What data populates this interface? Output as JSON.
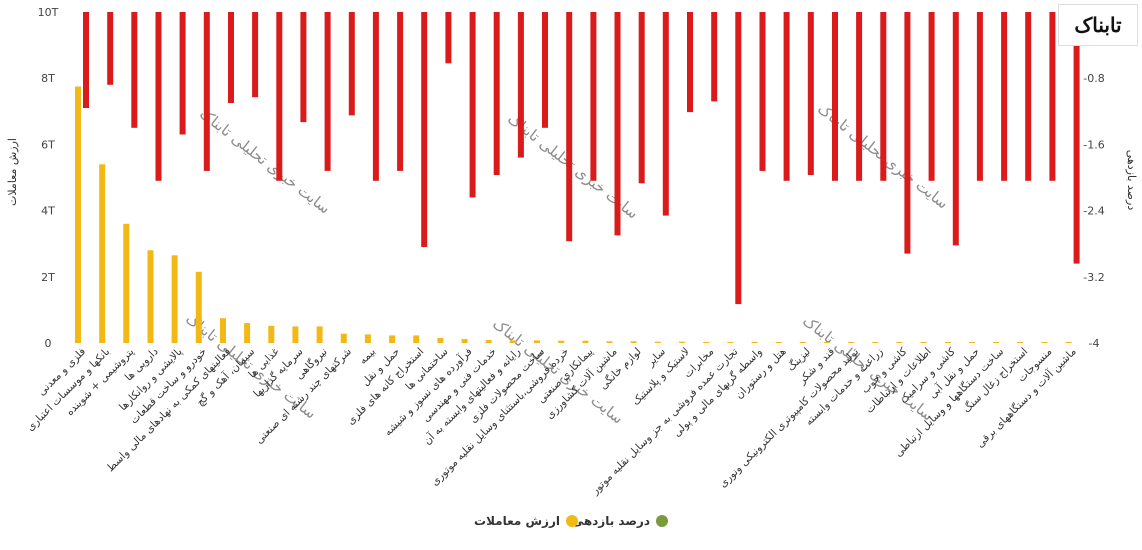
{
  "chart_data": {
    "type": "bar",
    "categories": [
      "فلزی و معدنی",
      "بانکها و موسسات اعتباری",
      "پتروشیمی + شوینده",
      "دارویی ها",
      "پالایشی و روانکارها",
      "خودرو و ساخت قطعات",
      "فعالیتهای کمکی به نهادهای مالی واسط",
      "سیمان، آهک و گچ",
      "غذایی ها",
      "سرمایه گذاریها",
      "نیروگاهی",
      "شرکتهای چند رشته ای صنعتی",
      "بیمه",
      "حمل و نقل",
      "استخراج کانه های فلزی",
      "ساختمانی ها",
      "فرآورده های نسوز و شیشه",
      "خدمات فنی و مهندسی",
      "رایانه و فعالیتهای وابسته به آن",
      "ساخت محصولات فلزی",
      "خرده فروشی،باستثنای وسایل نقلیه موتوری",
      "پیمانکاری صنعتی",
      "ماشین آلات کشاورزی",
      "لوازم خانگی",
      "سایر",
      "لاستیک و پلاستیک",
      "مخابرات",
      "تجارت عمده فروشی به جز وسایل نقلیه موتور",
      "واسطه گریهای مالی و پولی",
      "هتل و رستوران",
      "لیزینگ",
      "قند و شکر",
      "تولید محصولات کامپیوتری الکترونیکی ونوری",
      "زراعت و خدمات وابسته",
      "کاشی و چوب",
      "اطلاعات و ارتباطات",
      "کاشی و سرامیک",
      "حمل و نقل آبی",
      "ساخت دستگاهها و وسایل ارتباطی",
      "استخراج زغال سنگ",
      "منسوجات",
      "ماشین آلات و دستگاههای برقی"
    ],
    "series": [
      {
        "name": "ارزش معاملات",
        "color": "#f2b915",
        "axis": "left",
        "values": [
          7.75,
          5.4,
          3.6,
          2.8,
          2.65,
          2.15,
          0.75,
          0.6,
          0.52,
          0.5,
          0.5,
          0.28,
          0.26,
          0.23,
          0.23,
          0.15,
          0.12,
          0.09,
          0.08,
          0.08,
          0.07,
          0.07,
          0.05,
          0.05,
          0.04,
          0.04,
          0.03,
          0.03,
          0,
          0,
          0,
          0,
          0,
          0,
          0,
          0,
          0,
          0,
          0,
          0,
          0,
          0
        ]
      },
      {
        "name": "درصد بازدهی",
        "color": "#7a9a3c",
        "bar_color": "#d91b1b",
        "axis": "right",
        "values": [
          -1.16,
          -0.88,
          -1.4,
          -2.04,
          -1.48,
          -1.92,
          -1.1,
          -1.03,
          -2.04,
          -1.33,
          -1.92,
          -1.25,
          -2.04,
          -1.92,
          -2.84,
          -0.62,
          -2.24,
          -1.97,
          -1.76,
          -1.4,
          -2.77,
          -2.04,
          -2.7,
          -2.07,
          -2.46,
          -1.21,
          -1.08,
          -3.53,
          -1.92,
          -2.04,
          -1.97,
          -2.04,
          -2.04,
          -2.04,
          -2.92,
          -2.04,
          -2.82,
          -2.04,
          -2.04,
          -2.04,
          -2.04,
          -3.04
        ]
      }
    ],
    "left_axis": {
      "title": "ارزش معاملات",
      "ylim": [
        0,
        10
      ],
      "tick_labels": [
        "0",
        "2T",
        "4T",
        "6T",
        "8T",
        "10T"
      ]
    },
    "right_axis": {
      "title": "درصد بازدهی",
      "ylim": [
        -4,
        0
      ],
      "tick_labels": [
        "0",
        "-0.8",
        "-1.6",
        "-2.4",
        "-3.2",
        "-4"
      ]
    },
    "legend": {
      "position": "bottom-center",
      "items": [
        {
          "label": "درصد بازدهی",
          "color": "#7a9a3c"
        },
        {
          "label": "ارزش معاملات",
          "color": "#f2b915"
        }
      ]
    },
    "watermark_text": "سایت خبری تحلیلی تابناک",
    "logo_text": "تابناک",
    "grid": false
  }
}
